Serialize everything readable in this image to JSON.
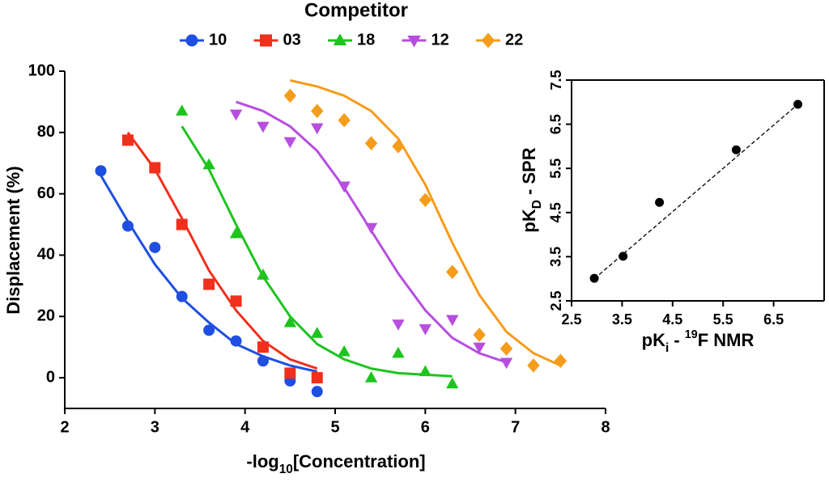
{
  "chart_data": [
    {
      "type": "scatter",
      "legend_title": "Competitor",
      "xlabel": [
        {
          "text": "-log"
        },
        {
          "text": "10",
          "sub": true
        },
        {
          "text": "[Concentration]"
        }
      ],
      "ylabel": [
        {
          "text": "Displacement (%)"
        }
      ],
      "xlim": [
        2,
        8
      ],
      "ylim": [
        -10,
        100
      ],
      "xticks": [
        2,
        3,
        4,
        5,
        6,
        7,
        8
      ],
      "yticks": [
        0,
        20,
        40,
        60,
        80,
        100
      ],
      "frame": false,
      "legend": "top",
      "series": [
        {
          "name": "10",
          "color": "#1f4fe0",
          "marker": "circle",
          "x": [
            2.4,
            2.7,
            3.0,
            3.3,
            3.6,
            3.9,
            4.2,
            4.5,
            4.8
          ],
          "values": [
            67.5,
            49.5,
            42.5,
            26.5,
            15.5,
            12,
            5.5,
            -1,
            -4.5
          ],
          "fit": {
            "x": [
              2.4,
              2.7,
              3.0,
              3.3,
              3.6,
              3.9,
              4.2,
              4.5,
              4.8
            ],
            "values": [
              66,
              51,
              37,
              26,
              18,
              11,
              7,
              4,
              2
            ]
          }
        },
        {
          "name": "03",
          "color": "#f0301c",
          "marker": "square",
          "x": [
            2.7,
            3.0,
            3.3,
            3.6,
            3.9,
            4.2,
            4.5,
            4.8
          ],
          "values": [
            77.5,
            68.5,
            50,
            30.5,
            25,
            10,
            1.5,
            0
          ],
          "fit": {
            "x": [
              2.7,
              3.0,
              3.3,
              3.6,
              3.9,
              4.2,
              4.5,
              4.8
            ],
            "values": [
              80,
              68,
              52,
              35,
              22,
              12,
              6,
              3
            ]
          }
        },
        {
          "name": "18",
          "color": "#1ec41e",
          "marker": "triangle-up",
          "x": [
            3.3,
            3.6,
            3.9,
            4.2,
            4.5,
            4.8,
            5.1,
            5.4,
            5.7,
            6.0,
            6.3
          ],
          "values": [
            87,
            69.5,
            47,
            33.5,
            18,
            14.5,
            8.5,
            0,
            8,
            2,
            -2
          ],
          "fit": {
            "x": [
              3.3,
              3.6,
              3.9,
              4.2,
              4.5,
              4.8,
              5.1,
              5.4,
              5.7,
              6.0,
              6.3
            ],
            "values": [
              82,
              68,
              50,
              33,
              20,
              11,
              6,
              3,
              1.5,
              1,
              0.5
            ]
          }
        },
        {
          "name": "12",
          "color": "#b74ee0",
          "marker": "triangle-down",
          "x": [
            3.9,
            4.2,
            4.5,
            4.8,
            5.1,
            5.4,
            5.7,
            6.0,
            6.3,
            6.6,
            6.9
          ],
          "values": [
            86,
            82,
            77,
            81.5,
            62.5,
            49,
            17.5,
            16,
            19,
            10,
            5
          ],
          "fit": {
            "x": [
              3.9,
              4.2,
              4.5,
              4.8,
              5.1,
              5.4,
              5.7,
              6.0,
              6.3,
              6.6,
              6.9
            ],
            "values": [
              90,
              87,
              82,
              74,
              62,
              48,
              34,
              22,
              13,
              8,
              5
            ]
          }
        },
        {
          "name": "22",
          "color": "#f59c1a",
          "marker": "diamond",
          "x": [
            4.5,
            4.8,
            5.1,
            5.4,
            5.7,
            6.0,
            6.3,
            6.6,
            6.9,
            7.2,
            7.5
          ],
          "values": [
            92,
            87,
            84,
            76.5,
            75.5,
            58,
            34.5,
            14,
            9.5,
            4,
            5.5
          ],
          "fit": {
            "x": [
              4.5,
              4.8,
              5.1,
              5.4,
              5.7,
              6.0,
              6.3,
              6.6,
              6.9,
              7.2,
              7.5
            ],
            "values": [
              97,
              95,
              92,
              87,
              78,
              63,
              44,
              27,
              15,
              8,
              4
            ]
          }
        }
      ]
    },
    {
      "type": "scatter",
      "xlabel": [
        {
          "text": "pK"
        },
        {
          "text": "i",
          "sub": true
        },
        {
          "text": " - "
        },
        {
          "text": "19",
          "sup": true
        },
        {
          "text": "F NMR"
        }
      ],
      "ylabel": [
        {
          "text": "pK"
        },
        {
          "text": "D",
          "sub": true
        },
        {
          "text": " - SPR"
        }
      ],
      "xlim": [
        2.5,
        7.5
      ],
      "ylim": [
        2.5,
        7.5
      ],
      "xticks": [
        2.5,
        3.5,
        4.5,
        5.5,
        6.5
      ],
      "yticks": [
        2.5,
        3.5,
        4.5,
        5.5,
        6.5,
        7.5
      ],
      "frame": true,
      "series": [
        {
          "color": "#000000",
          "marker": "circle",
          "fit_style": "dashed",
          "x": [
            2.95,
            3.52,
            4.24,
            5.76,
            6.98
          ],
          "values": [
            3.01,
            3.51,
            4.73,
            5.92,
            6.95
          ],
          "fit": {
            "x": [
              2.95,
              6.98
            ],
            "values": [
              3.0,
              6.95
            ]
          }
        }
      ]
    }
  ]
}
